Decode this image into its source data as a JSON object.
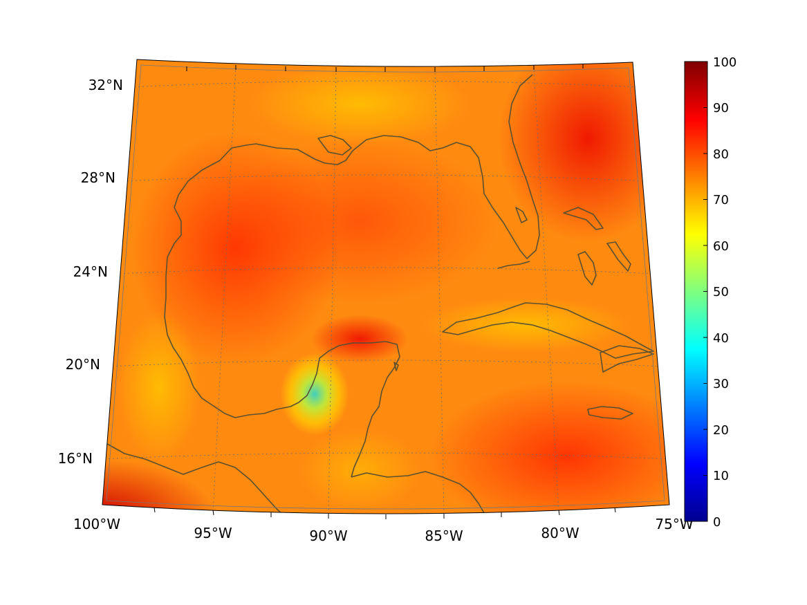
{
  "map": {
    "type": "lambert-conformal-filled-field",
    "projection_corners": {
      "top_left": "32.5°N 100°W",
      "bottom_right": "14°N 75°W"
    },
    "lat_ticks": [
      "32°N",
      "28°N",
      "24°N",
      "20°N",
      "16°N"
    ],
    "lat_values": [
      32,
      28,
      24,
      20,
      16
    ],
    "lon_ticks": [
      "100°W",
      "95°W",
      "90°W",
      "85°W",
      "80°W",
      "75°W"
    ],
    "lon_values": [
      -100,
      -95,
      -90,
      -85,
      -80,
      -75
    ],
    "grid": true,
    "coastline_color": "#5a5030",
    "field_regions": [
      {
        "name": "gulf-interior",
        "level": 82
      },
      {
        "name": "western-gulf-core",
        "level": 88
      },
      {
        "name": "atlantic-east-of-florida",
        "level": 90
      },
      {
        "name": "southwest-pacific-corner",
        "level": 95
      },
      {
        "name": "caribbean-south",
        "level": 85
      },
      {
        "name": "yucatan-low",
        "level": 38
      },
      {
        "name": "land-margins",
        "level": 72
      }
    ]
  },
  "colorbar": {
    "ticks": [
      "100",
      "90",
      "80",
      "70",
      "60",
      "50",
      "40",
      "30",
      "20",
      "10",
      "0"
    ],
    "min": 0,
    "max": 100,
    "colormap": "jet",
    "stops": [
      "#7f0000",
      "#ff0000",
      "#ff7f00",
      "#ffff00",
      "#7fff7f",
      "#00ffff",
      "#007fff",
      "#0000ff",
      "#00008f"
    ]
  }
}
